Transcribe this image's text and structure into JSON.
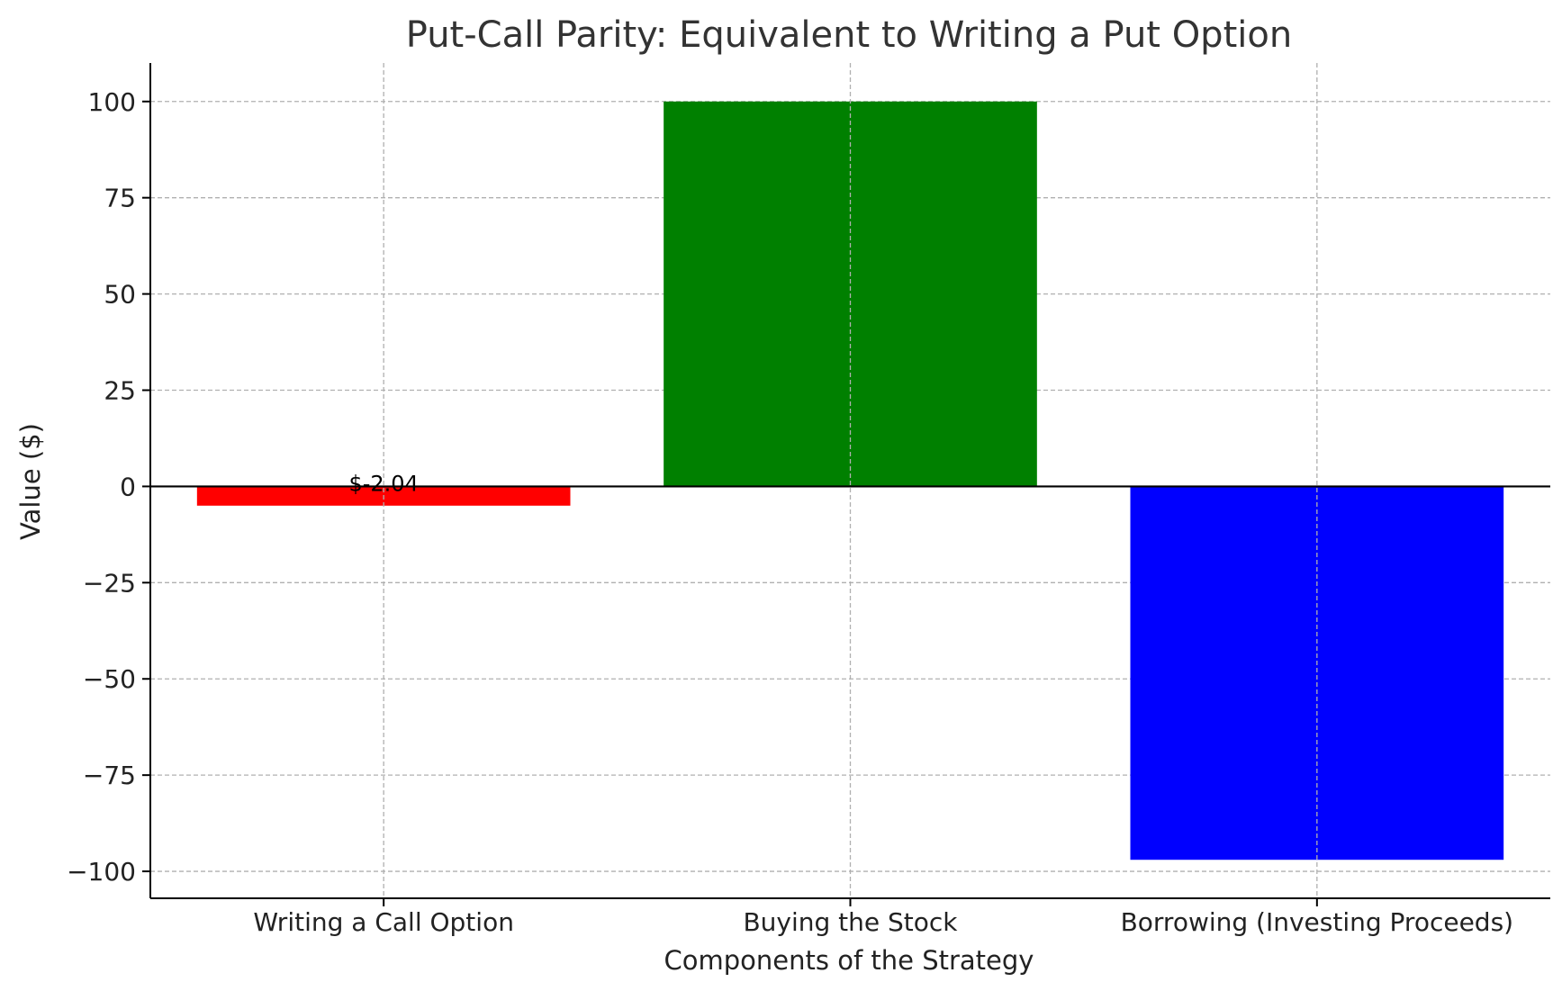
{
  "chart_data": {
    "type": "bar",
    "title": "Put-Call Parity: Equivalent to Writing a Put Option",
    "xlabel": "Components of the Strategy",
    "ylabel": "Value ($)",
    "categories": [
      "Writing a Call Option",
      "Buying the Stock",
      "Borrowing (Investing Proceeds)"
    ],
    "values": [
      -5.0,
      100,
      -97.0
    ],
    "bar_colors": [
      "#ff0000",
      "#008000",
      "#0000ff"
    ],
    "annotations": [
      {
        "category": "Writing a Call Option",
        "text": "$-2.04"
      }
    ],
    "ylim": [
      -107,
      110
    ],
    "yticks": [
      -100,
      -75,
      -50,
      -25,
      0,
      25,
      50,
      75,
      100
    ],
    "ytick_labels": [
      "−100",
      "−75",
      "−50",
      "−25",
      "0",
      "25",
      "50",
      "75",
      "100"
    ],
    "grid": true,
    "zero_line": true
  }
}
